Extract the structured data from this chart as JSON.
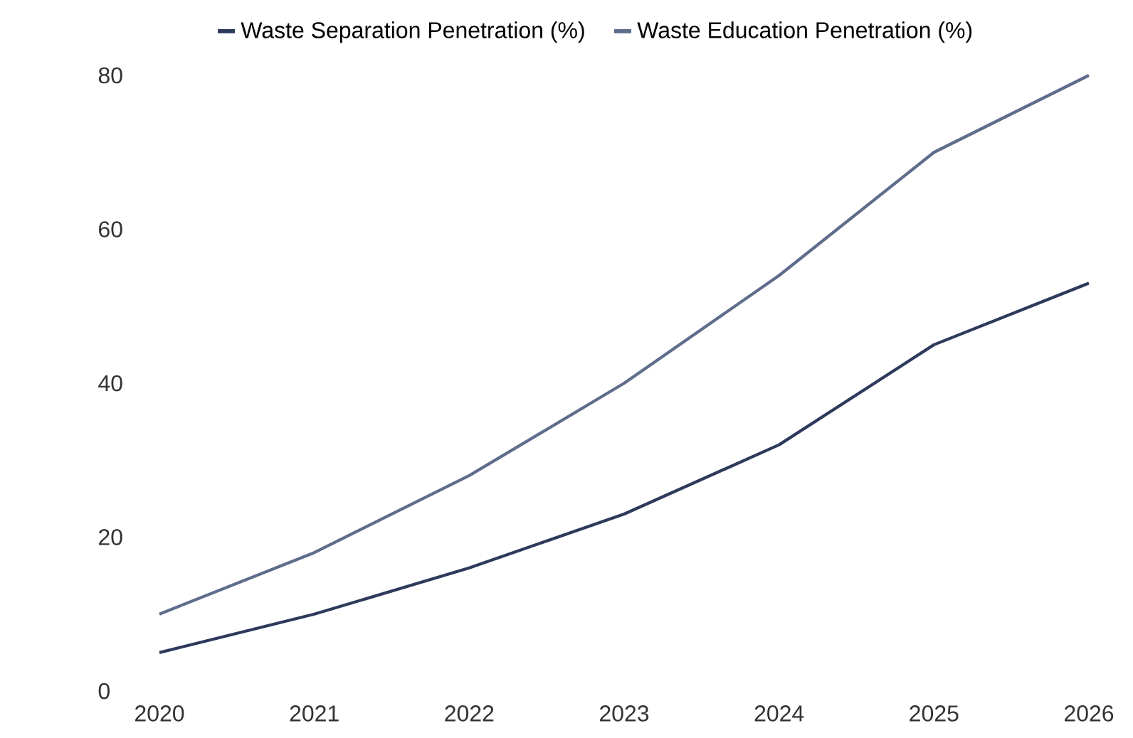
{
  "chart_data": {
    "type": "line",
    "x": [
      2020,
      2021,
      2022,
      2023,
      2024,
      2025,
      2026
    ],
    "series": [
      {
        "name": "Waste Separation Penetration (%)",
        "color": "#2e3a5c",
        "values": [
          5,
          10,
          16,
          23,
          32,
          45,
          53
        ]
      },
      {
        "name": "Waste Education Penetration (%)",
        "color": "#5f6d8c",
        "values": [
          10,
          18,
          28,
          40,
          54,
          70,
          80
        ]
      }
    ],
    "xlim": [
      2020,
      2026
    ],
    "ylim": [
      0,
      80
    ],
    "xticks": [
      2020,
      2021,
      2022,
      2023,
      2024,
      2025,
      2026
    ],
    "yticks": [
      0,
      20,
      40,
      60,
      80
    ],
    "legend": "top"
  }
}
